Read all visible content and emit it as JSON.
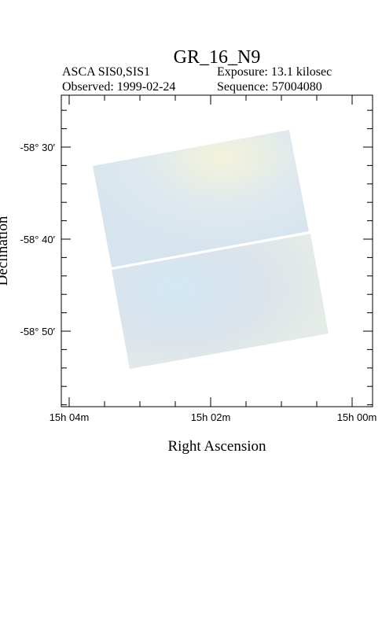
{
  "header": {
    "title": "GR_16_N9",
    "instrument": "ASCA SIS0,SIS1",
    "exposure": "Exposure: 13.1 kilosec",
    "observed": "Observed: 1999-02-24",
    "sequence": "Sequence: 57004080"
  },
  "axes": {
    "x_label": "Right Ascension",
    "y_label": "Declination",
    "x_ticks": [
      "15h 04m",
      "15h 02m",
      "15h 00m"
    ],
    "y_ticks": [
      "-58° 30′",
      "-58° 40′",
      "-58° 50′"
    ]
  }
}
